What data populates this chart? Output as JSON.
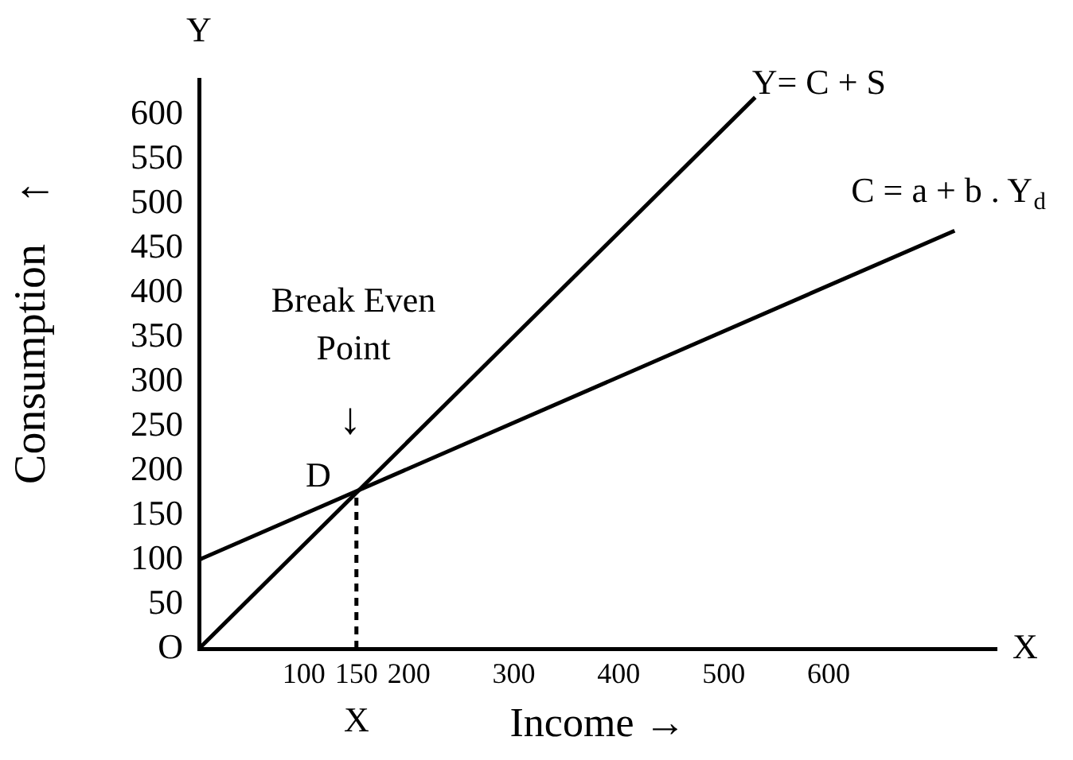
{
  "chart_data": {
    "type": "line",
    "xlabel": "Income →",
    "ylabel": "Consumption",
    "series": [
      {
        "name": "Y= C + S",
        "color": "#000000",
        "x": [
          0,
          530
        ],
        "values": [
          0,
          620
        ]
      },
      {
        "name": "C = a + b . Y$_{d}$",
        "color": "#000000",
        "x": [
          0,
          720
        ],
        "values": [
          100,
          470
        ]
      },
      {
        "color": "#000000",
        "x": [
          150,
          150
        ],
        "values": [
          0,
          176
        ],
        "line_style": "dashed"
      }
    ],
    "xlim": [
      0,
      760
    ],
    "ylim": [
      0,
      640
    ],
    "xticks": [
      100,
      150,
      200,
      300,
      400,
      500,
      600
    ],
    "yticks": [
      {
        "value": 0,
        "label": "O"
      },
      50,
      100,
      150,
      200,
      250,
      300,
      350,
      400,
      450,
      500,
      550,
      600
    ],
    "grid": false,
    "legend": false,
    "marker": "none",
    "line_style": "solid",
    "annotations": [
      "Y",
      "X",
      "←",
      "D",
      "↓",
      "Break Even Point",
      "X"
    ]
  }
}
